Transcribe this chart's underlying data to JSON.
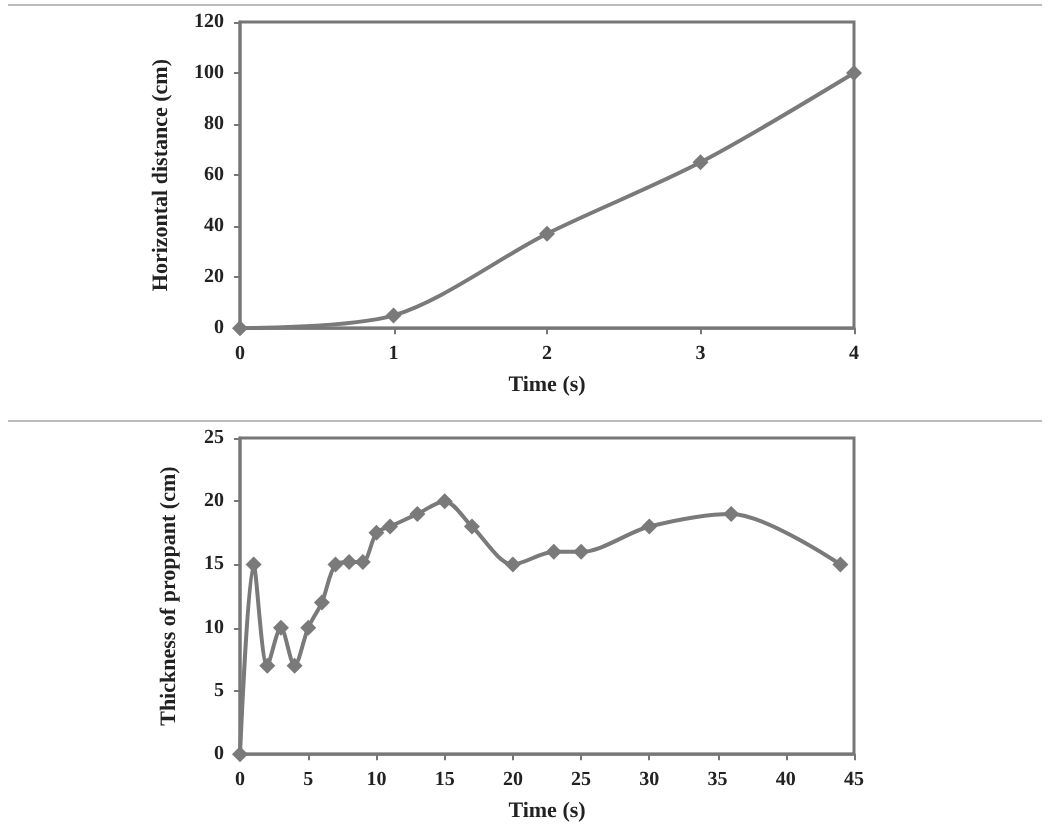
{
  "chart_data": [
    {
      "type": "line",
      "xlabel": "Time (s)",
      "ylabel": "Horizontal distance (cm)",
      "x": [
        0,
        1,
        2,
        3,
        4
      ],
      "series": [
        {
          "color": "#7a7a7a",
          "values": [
            0,
            5,
            37,
            65,
            100
          ]
        }
      ],
      "xlim": [
        0,
        4
      ],
      "xticks": [
        0,
        1,
        2,
        3,
        4
      ],
      "ylim": [
        0,
        120
      ],
      "yticks": [
        0,
        20,
        40,
        60,
        80,
        100,
        120
      ],
      "marker": "diamond",
      "line_style": "solid",
      "grid": false
    },
    {
      "type": "line",
      "xlabel": "Time (s)",
      "ylabel": "Thickness of proppant (cm)",
      "x": [
        0,
        1,
        2,
        3,
        4,
        5,
        6,
        7,
        8,
        9,
        10,
        11,
        13,
        15,
        17,
        20,
        23,
        25,
        30,
        36,
        44
      ],
      "series": [
        {
          "color": "#7a7a7a",
          "values": [
            0,
            15,
            7,
            10,
            7,
            10,
            12,
            15,
            15.2,
            15.2,
            17.5,
            18,
            19,
            20,
            18,
            15,
            16,
            16,
            18,
            19,
            15
          ]
        }
      ],
      "xlim": [
        0,
        45
      ],
      "xticks": [
        0,
        5,
        10,
        15,
        20,
        25,
        30,
        35,
        40,
        45
      ],
      "ylim": [
        0,
        25
      ],
      "yticks": [
        0,
        5,
        10,
        15,
        20,
        25
      ],
      "marker": "diamond",
      "line_style": "solid",
      "grid": false
    }
  ]
}
